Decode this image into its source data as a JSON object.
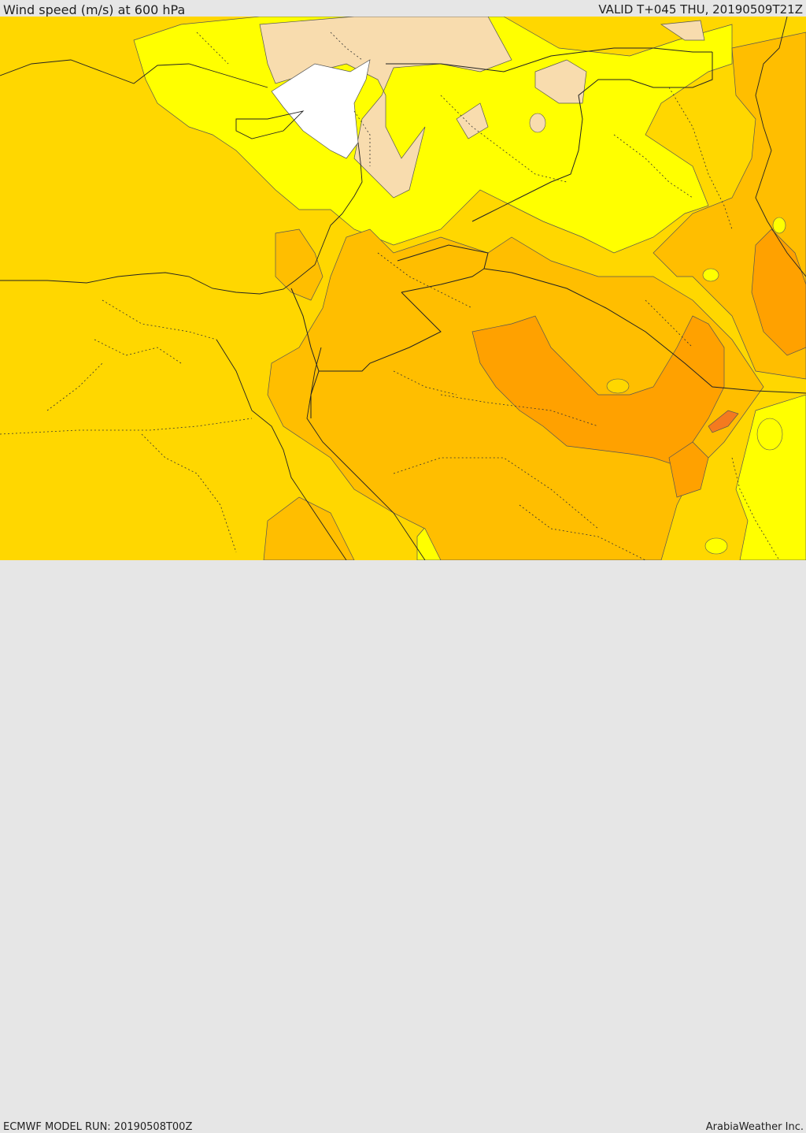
{
  "header": {
    "title": "Wind speed (m/s) at 600 hPa",
    "valid": "VALID T+045 THU, 20190509T21Z"
  },
  "footer": {
    "model_run": "ECMWF MODEL RUN: 20190508T00Z",
    "credit": "ArabiaWeather Inc."
  },
  "map": {
    "colors": {
      "base": "#ffd700",
      "lighter": "#ffff00",
      "lightest": "#f8dcae",
      "white": "#ffffff",
      "orange": "#ffbe00",
      "dark_orange": "#ffa100",
      "darkest": "#f47a1f"
    }
  }
}
